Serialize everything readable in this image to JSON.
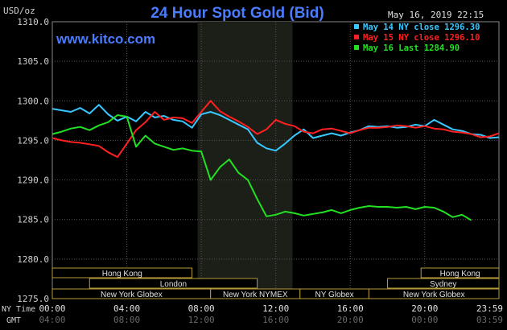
{
  "header": {
    "title": "24 Hour Spot Gold (Bid)",
    "timestamp": "May 16, 2019 22:15",
    "site": "www.kitco.com",
    "y_unit": "USD/oz"
  },
  "legend": [
    {
      "label": "May 14 NY close 1296.30",
      "color": "#38c8ff"
    },
    {
      "label": "May 15 NY close 1296.10",
      "color": "#ff2020"
    },
    {
      "label": "May 16 Last 1284.90",
      "color": "#22e022"
    }
  ],
  "axes": {
    "y_ticks": [
      "1310.0",
      "1305.0",
      "1300.0",
      "1295.0",
      "1290.0",
      "1285.0",
      "1280.0",
      "1275.0"
    ],
    "x_ticks_ny": [
      "00:00",
      "04:00",
      "08:00",
      "12:00",
      "16:00",
      "20:00",
      "23:59"
    ],
    "x_ticks_gmt": [
      "04:00",
      "08:00",
      "12:00",
      "16:00",
      "20:00",
      "00:00",
      "03:59"
    ],
    "ny_time_label": "NY Time",
    "gmt_label": "GMT"
  },
  "sessions": [
    {
      "label": "Hong Kong",
      "start": 0,
      "end": 7.5
    },
    {
      "label": "London",
      "start": 2.0,
      "end": 11.0
    },
    {
      "label": "New York Globex",
      "start": 0,
      "end": 8.5
    },
    {
      "label": "New York NYMEX",
      "start": 8.5,
      "end": 13.3
    },
    {
      "label": "NY Globex",
      "start": 13.3,
      "end": 17.0
    },
    {
      "label": "Hong Kong",
      "start": 19.8,
      "end": 23.983
    },
    {
      "label": "Sydney",
      "start": 18.0,
      "end": 23.983
    },
    {
      "label": "New York Globex",
      "start": 17.0,
      "end": 23.983
    }
  ],
  "chart_data": {
    "type": "line",
    "title": "24 Hour Spot Gold (Bid)",
    "ylabel": "USD/oz",
    "xlabel": "NY Time",
    "xlim": [
      0,
      23.983
    ],
    "ylim": [
      1275,
      1310
    ],
    "highlight_band": [
      7.8,
      12.9
    ],
    "series": [
      {
        "name": "May 14 NY close 1296.30",
        "color": "#38c8ff",
        "x": [
          0,
          0.5,
          1,
          1.5,
          2,
          2.5,
          3,
          3.5,
          4,
          4.5,
          5,
          5.5,
          6,
          6.5,
          7,
          7.5,
          8,
          8.5,
          9,
          9.5,
          10,
          10.5,
          11,
          11.5,
          12,
          12.5,
          13,
          13.5,
          14,
          14.5,
          15,
          15.5,
          16,
          16.5,
          17,
          17.5,
          18,
          18.5,
          19,
          19.5,
          20,
          20.5,
          21,
          21.5,
          22,
          22.5,
          23,
          23.5,
          23.98
        ],
        "y": [
          1299.0,
          1298.8,
          1298.6,
          1299.1,
          1298.4,
          1299.5,
          1298.3,
          1297.5,
          1298.0,
          1297.4,
          1298.6,
          1297.9,
          1298.1,
          1297.6,
          1297.4,
          1296.6,
          1298.3,
          1298.6,
          1298.2,
          1297.6,
          1297.0,
          1296.4,
          1294.7,
          1294.0,
          1293.7,
          1294.6,
          1295.6,
          1296.4,
          1295.3,
          1295.6,
          1295.9,
          1295.6,
          1296.0,
          1296.3,
          1296.8,
          1296.7,
          1296.8,
          1296.6,
          1296.7,
          1297.0,
          1296.8,
          1297.6,
          1297.0,
          1296.4,
          1296.2,
          1295.8,
          1295.7,
          1295.3,
          1295.4
        ]
      },
      {
        "name": "May 15 NY close 1296.10",
        "color": "#ff2020",
        "x": [
          0,
          0.5,
          1,
          1.5,
          2,
          2.5,
          3,
          3.5,
          4,
          4.5,
          5,
          5.5,
          6,
          6.5,
          7,
          7.5,
          8,
          8.5,
          9,
          9.5,
          10,
          10.5,
          11,
          11.5,
          12,
          12.5,
          13,
          13.5,
          14,
          14.5,
          15,
          15.5,
          16,
          16.5,
          17,
          17.5,
          18,
          18.5,
          19,
          19.5,
          20,
          20.5,
          21,
          21.5,
          22,
          22.5,
          23,
          23.5,
          23.98
        ],
        "y": [
          1295.3,
          1295.0,
          1294.8,
          1294.7,
          1294.5,
          1294.3,
          1293.5,
          1292.9,
          1294.6,
          1296.3,
          1297.3,
          1298.6,
          1297.6,
          1297.9,
          1297.8,
          1297.2,
          1298.6,
          1300.0,
          1298.7,
          1298.0,
          1297.4,
          1296.7,
          1295.8,
          1296.4,
          1297.6,
          1297.1,
          1296.8,
          1296.1,
          1295.9,
          1296.4,
          1296.5,
          1296.2,
          1295.9,
          1296.3,
          1296.6,
          1296.6,
          1296.7,
          1296.9,
          1296.8,
          1296.6,
          1296.8,
          1296.5,
          1296.4,
          1296.1,
          1296.0,
          1295.8,
          1295.4,
          1295.5,
          1295.9
        ]
      },
      {
        "name": "May 16 Last 1284.90",
        "color": "#22e022",
        "x": [
          0,
          0.5,
          1,
          1.5,
          2,
          2.5,
          3,
          3.5,
          4,
          4.5,
          5,
          5.5,
          6,
          6.5,
          7,
          7.5,
          8,
          8.5,
          9,
          9.5,
          10,
          10.5,
          11,
          11.5,
          12,
          12.5,
          13,
          13.5,
          14,
          14.5,
          15,
          15.5,
          16,
          16.5,
          17,
          17.5,
          18,
          18.5,
          19,
          19.5,
          20,
          20.5,
          21,
          21.5,
          22,
          22.5
        ],
        "y": [
          1295.8,
          1296.1,
          1296.5,
          1296.7,
          1296.3,
          1296.9,
          1297.3,
          1298.2,
          1298.0,
          1294.2,
          1295.6,
          1294.6,
          1294.2,
          1293.8,
          1294.0,
          1293.7,
          1293.6,
          1290.0,
          1291.6,
          1292.6,
          1290.9,
          1290.0,
          1287.6,
          1285.4,
          1285.6,
          1286.0,
          1285.8,
          1285.5,
          1285.7,
          1285.9,
          1286.2,
          1285.8,
          1286.2,
          1286.5,
          1286.7,
          1286.6,
          1286.6,
          1286.5,
          1286.6,
          1286.3,
          1286.6,
          1286.5,
          1286.0,
          1285.3,
          1285.6,
          1284.9
        ]
      }
    ]
  }
}
